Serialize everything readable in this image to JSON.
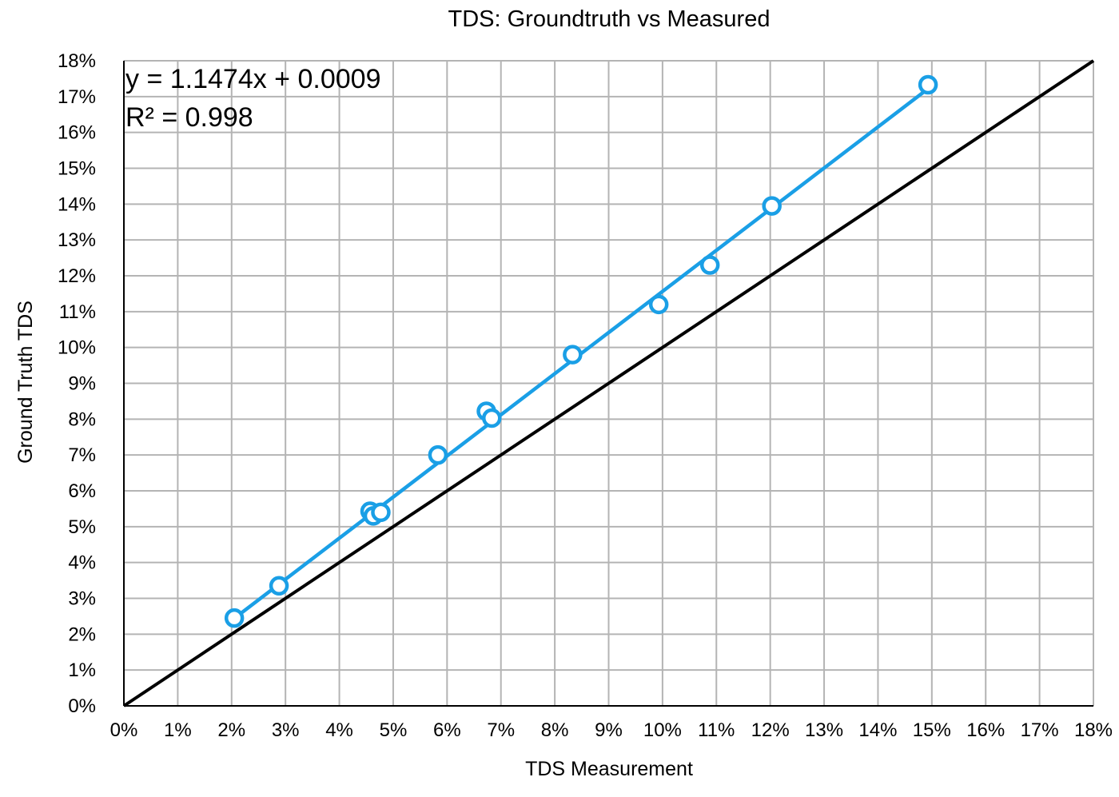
{
  "chart_data": {
    "type": "scatter",
    "title": "TDS: Groundtruth vs Measured",
    "xlabel": "TDS Measurement",
    "ylabel": "Ground Truth TDS",
    "xlim": [
      0,
      0.18
    ],
    "ylim": [
      0,
      0.18
    ],
    "x_ticks": [
      "0%",
      "1%",
      "2%",
      "3%",
      "4%",
      "5%",
      "6%",
      "7%",
      "8%",
      "9%",
      "10%",
      "11%",
      "12%",
      "13%",
      "14%",
      "15%",
      "16%",
      "17%",
      "18%"
    ],
    "y_ticks": [
      "0%",
      "1%",
      "2%",
      "3%",
      "4%",
      "5%",
      "6%",
      "7%",
      "8%",
      "9%",
      "10%",
      "11%",
      "12%",
      "13%",
      "14%",
      "15%",
      "16%",
      "17%",
      "18%"
    ],
    "grid": true,
    "series": [
      {
        "type": "scatter",
        "color": "#1a9fe6",
        "x": [
          0.0205,
          0.0288,
          0.0457,
          0.0463,
          0.0477,
          0.0583,
          0.0673,
          0.0683,
          0.0833,
          0.0993,
          0.1088,
          0.1203,
          0.1493
        ],
        "y": [
          0.0245,
          0.0335,
          0.0543,
          0.053,
          0.054,
          0.07,
          0.0822,
          0.0803,
          0.098,
          0.112,
          0.123,
          0.1395,
          0.1733
        ]
      }
    ],
    "trendline": {
      "slope": 1.1474,
      "intercept": 0.0009,
      "x_range": [
        0.0205,
        0.1493
      ],
      "color": "#1a9fe6"
    },
    "identity_line": {
      "x_range": [
        0,
        0.18
      ],
      "color": "#000000"
    },
    "annotations": {
      "equation": "y = 1.1474x + 0.0009",
      "r_squared": "R² = 0.998"
    }
  }
}
